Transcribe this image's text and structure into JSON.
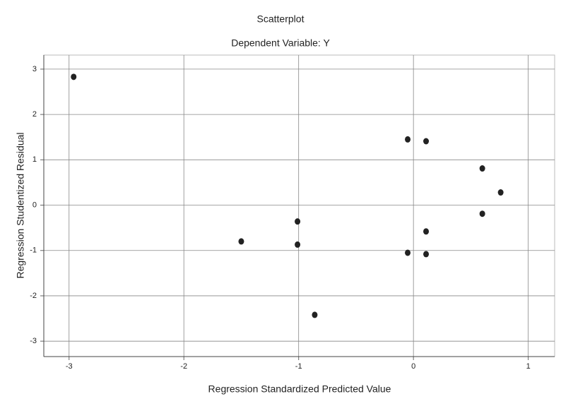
{
  "chart_data": {
    "type": "scatter",
    "title": "Scatterplot",
    "subtitle": "Dependent Variable: Y",
    "x_label": "Regression Standardized Predicted Value",
    "y_label": "Regression Studentized Residual",
    "x": [
      -2.96,
      -1.5,
      -1.01,
      -1.01,
      -0.86,
      -0.05,
      0.11,
      -0.05,
      0.11,
      0.11,
      0.6,
      0.76,
      0.6
    ],
    "values": [
      2.83,
      -0.8,
      -0.36,
      -0.87,
      -2.42,
      1.45,
      1.41,
      -1.05,
      -1.08,
      -0.58,
      0.81,
      0.28,
      -0.19
    ],
    "color": "#222222",
    "xlim": [
      -3.22,
      1.23
    ],
    "xticks": [
      -3,
      -2,
      -1,
      0,
      1
    ],
    "ylim": [
      -3.34,
      3.31
    ],
    "yticks": [
      -3,
      -2,
      -1,
      0,
      1,
      2,
      3
    ],
    "grid": true
  }
}
